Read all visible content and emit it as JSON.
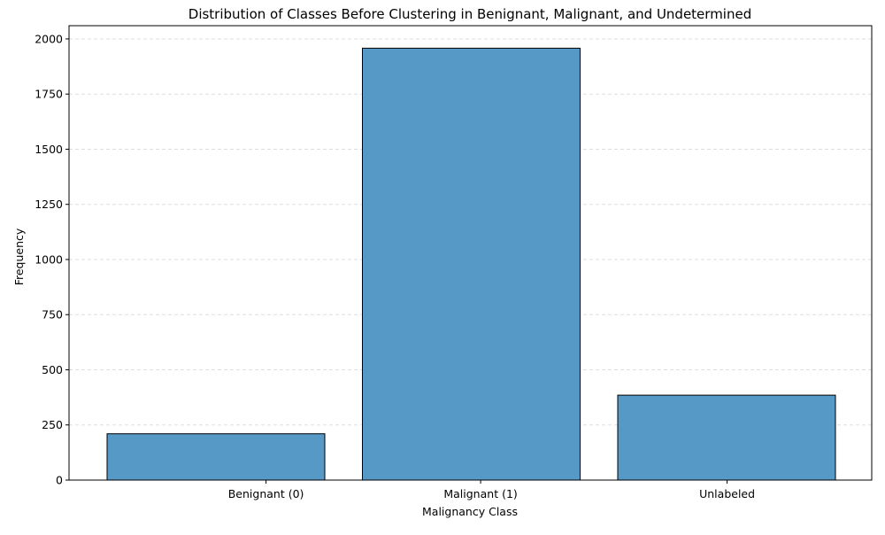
{
  "chart_data": {
    "type": "bar",
    "title": "Distribution of Classes Before Clustering in Benignant, Malignant, and Undetermined",
    "xlabel": "Malignancy Class",
    "ylabel": "Frequency",
    "categories": [
      "Benignant (0)",
      "Malignant (1)",
      "Unlabeled"
    ],
    "values": [
      210,
      1958,
      385
    ],
    "ylim": [
      0,
      2060
    ],
    "yticks": [
      0,
      250,
      500,
      750,
      1000,
      1250,
      1500,
      1750,
      2000
    ],
    "grid": "y-dashed",
    "legend": "none",
    "colors": {
      "bar_fill": "#5698c6",
      "bar_edge": "#000000",
      "grid": "#dddddd",
      "axis": "#000000"
    }
  }
}
